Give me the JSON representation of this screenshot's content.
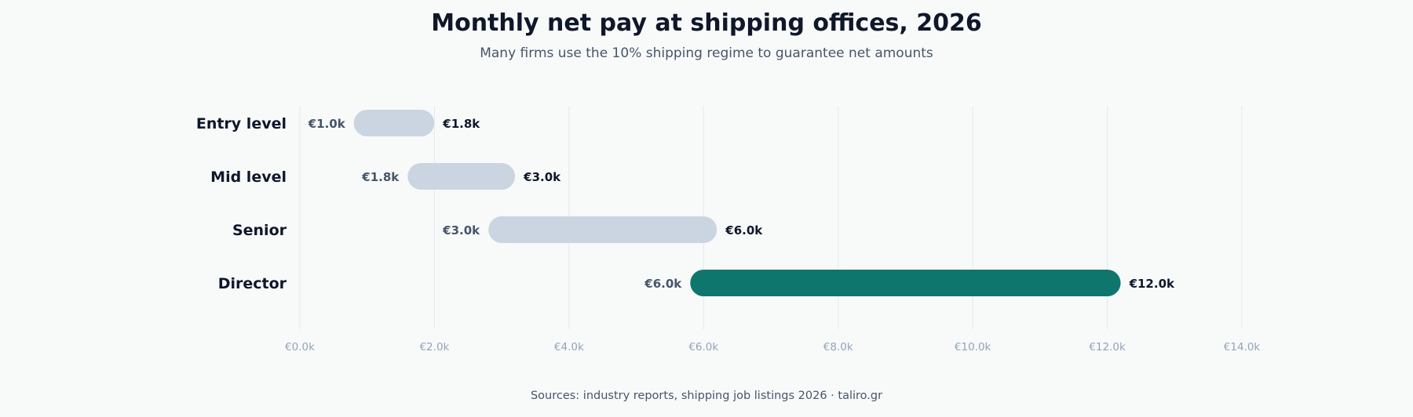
{
  "chart_data": {
    "type": "bar",
    "subtype": "range",
    "title": "Monthly net pay at shipping offices, 2026",
    "subtitle": "Many firms use the 10% shipping regime to guarantee net amounts",
    "source": "Sources: industry reports, shipping job listings 2026 · taliro.gr",
    "xlabel": "",
    "ylabel": "",
    "xlim": [
      0,
      14000
    ],
    "x_ticks": [
      0,
      2000,
      4000,
      6000,
      8000,
      10000,
      12000,
      14000
    ],
    "x_tick_labels": [
      "€0.0k",
      "€2.0k",
      "€4.0k",
      "€6.0k",
      "€8.0k",
      "€10.0k",
      "€12.0k",
      "€14.0k"
    ],
    "grid": true,
    "legend": "none",
    "categories": [
      "Entry level",
      "Mid level",
      "Senior",
      "Director"
    ],
    "low": [
      1000,
      1800,
      3000,
      6000
    ],
    "high": [
      1800,
      3000,
      6000,
      12000
    ],
    "low_labels": [
      "€1.0k",
      "€1.8k",
      "€3.0k",
      "€6.0k"
    ],
    "high_labels": [
      "€1.8k",
      "€3.0k",
      "€6.0k",
      "€12.0k"
    ],
    "highlight_category": "Director",
    "colors": {
      "bar_default": "#cbd5e1",
      "bar_highlight": "#0f766e",
      "grid": "#e2e8f0"
    }
  }
}
